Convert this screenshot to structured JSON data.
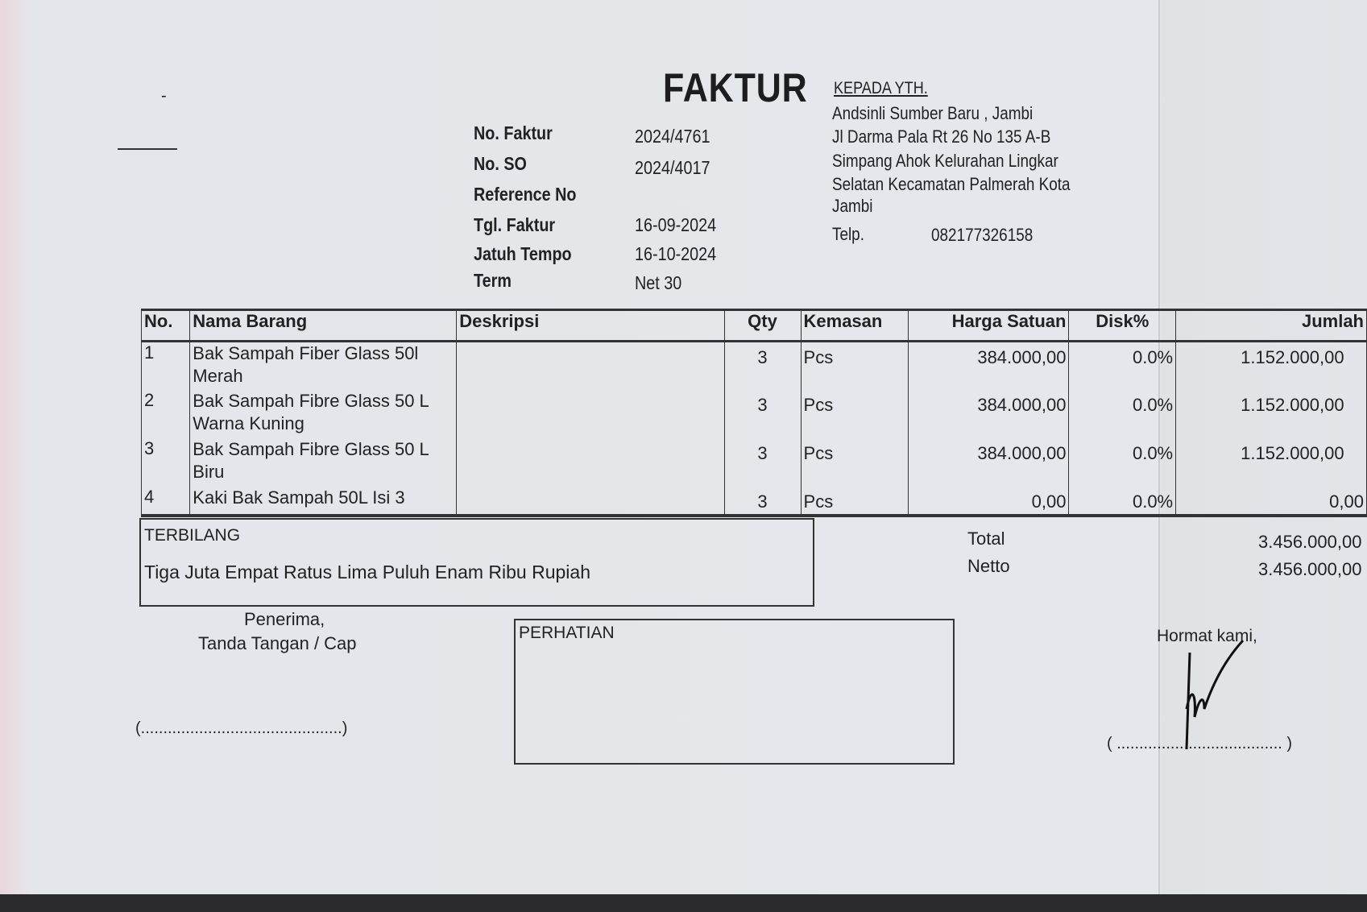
{
  "title": "FAKTUR",
  "header": {
    "fields": [
      {
        "label": "No. Faktur",
        "value": "2024/4761"
      },
      {
        "label": "No. SO",
        "value": "2024/4017"
      },
      {
        "label": "Reference No",
        "value": ""
      },
      {
        "label": "Tgl. Faktur",
        "value": "16-09-2024"
      },
      {
        "label": "Jatuh Tempo",
        "value": "16-10-2024"
      },
      {
        "label": "Term",
        "value": "Net 30"
      }
    ]
  },
  "recipient": {
    "heading": "KEPADA YTH.",
    "lines": [
      "Andsinli Sumber Baru , Jambi",
      "Jl Darma Pala Rt 26 No 135 A-B",
      "Simpang Ahok Kelurahan Lingkar",
      "Selatan Kecamatan Palmerah Kota",
      "Jambi"
    ],
    "phone_label": "Telp.",
    "phone": "082177326158"
  },
  "table": {
    "columns": [
      "No.",
      "Nama Barang",
      "Deskripsi",
      "Qty",
      "Kemasan",
      "Harga Satuan",
      "Disk%",
      "Jumlah"
    ],
    "rows": [
      {
        "no": "1",
        "name": "Bak Sampah Fiber Glass 50l Merah",
        "desc": "",
        "qty": "3",
        "unit": "Pcs",
        "price": "384.000,00",
        "disc": "0.0%",
        "total": "1.152.000,00"
      },
      {
        "no": "2",
        "name": "Bak Sampah Fibre Glass 50 L Warna Kuning",
        "desc": "",
        "qty": "3",
        "unit": "Pcs",
        "price": "384.000,00",
        "disc": "0.0%",
        "total": "1.152.000,00"
      },
      {
        "no": "3",
        "name": "Bak Sampah Fibre Glass 50 L Biru",
        "desc": "",
        "qty": "3",
        "unit": "Pcs",
        "price": "384.000,00",
        "disc": "0.0%",
        "total": "1.152.000,00"
      },
      {
        "no": "4",
        "name": "Kaki Bak Sampah 50L Isi 3",
        "desc": "",
        "qty": "3",
        "unit": "Pcs",
        "price": "0,00",
        "disc": "0.0%",
        "total": "0,00"
      }
    ]
  },
  "terbilang": {
    "label": "TERBILANG",
    "text": "Tiga Juta Empat Ratus Lima Puluh Enam Ribu Rupiah"
  },
  "totals": {
    "total_label": "Total",
    "total": "3.456.000,00",
    "netto_label": "Netto",
    "netto": "3.456.000,00"
  },
  "footer": {
    "receiver_line1": "Penerima,",
    "receiver_line2": "Tanda Tangan / Cap",
    "receiver_sign": "(.............................................)",
    "notice_label": "PERHATIAN",
    "regards": "Hormat kami,",
    "sender_sign": "( ..................................... )"
  }
}
